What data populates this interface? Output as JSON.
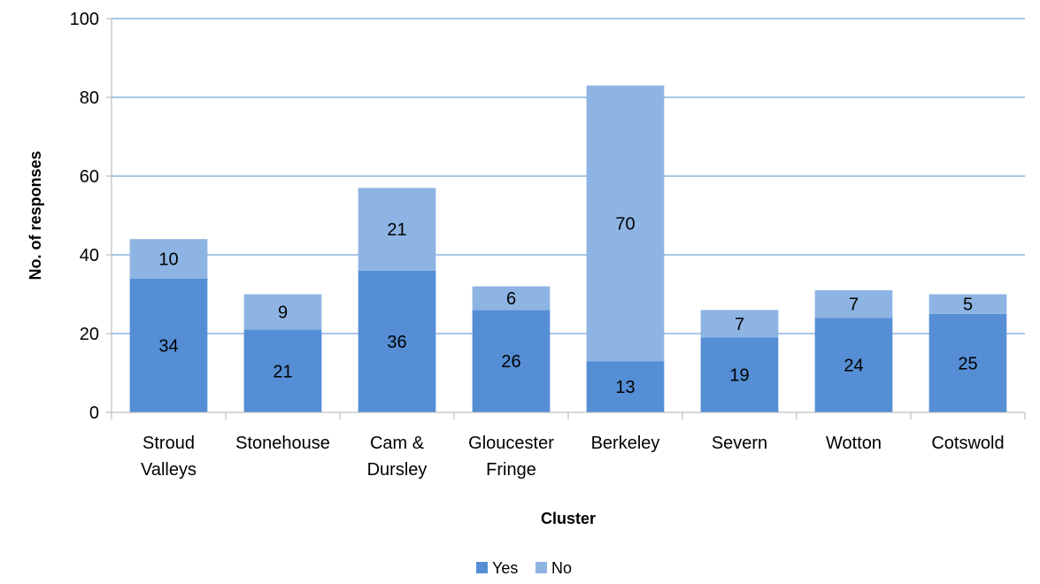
{
  "chart_data": {
    "type": "bar",
    "stacked": true,
    "title": "",
    "xlabel": "Cluster",
    "ylabel": "No. of responses",
    "ylim": [
      0,
      100
    ],
    "yticks": [
      0,
      20,
      40,
      60,
      80,
      100
    ],
    "grid": true,
    "legend_position": "bottom",
    "categories": [
      [
        "Stroud",
        "Valleys"
      ],
      [
        "Stonehouse"
      ],
      [
        "Cam &",
        "Dursley"
      ],
      [
        "Gloucester",
        "Fringe"
      ],
      [
        "Berkeley"
      ],
      [
        "Severn"
      ],
      [
        "Wotton"
      ],
      [
        "Cotswold"
      ]
    ],
    "series": [
      {
        "name": "Yes",
        "color": "#558ed5",
        "values": [
          34,
          21,
          36,
          26,
          13,
          19,
          24,
          25
        ]
      },
      {
        "name": "No",
        "color": "#8eb4e3",
        "values": [
          10,
          9,
          21,
          6,
          70,
          7,
          7,
          5
        ]
      }
    ]
  }
}
